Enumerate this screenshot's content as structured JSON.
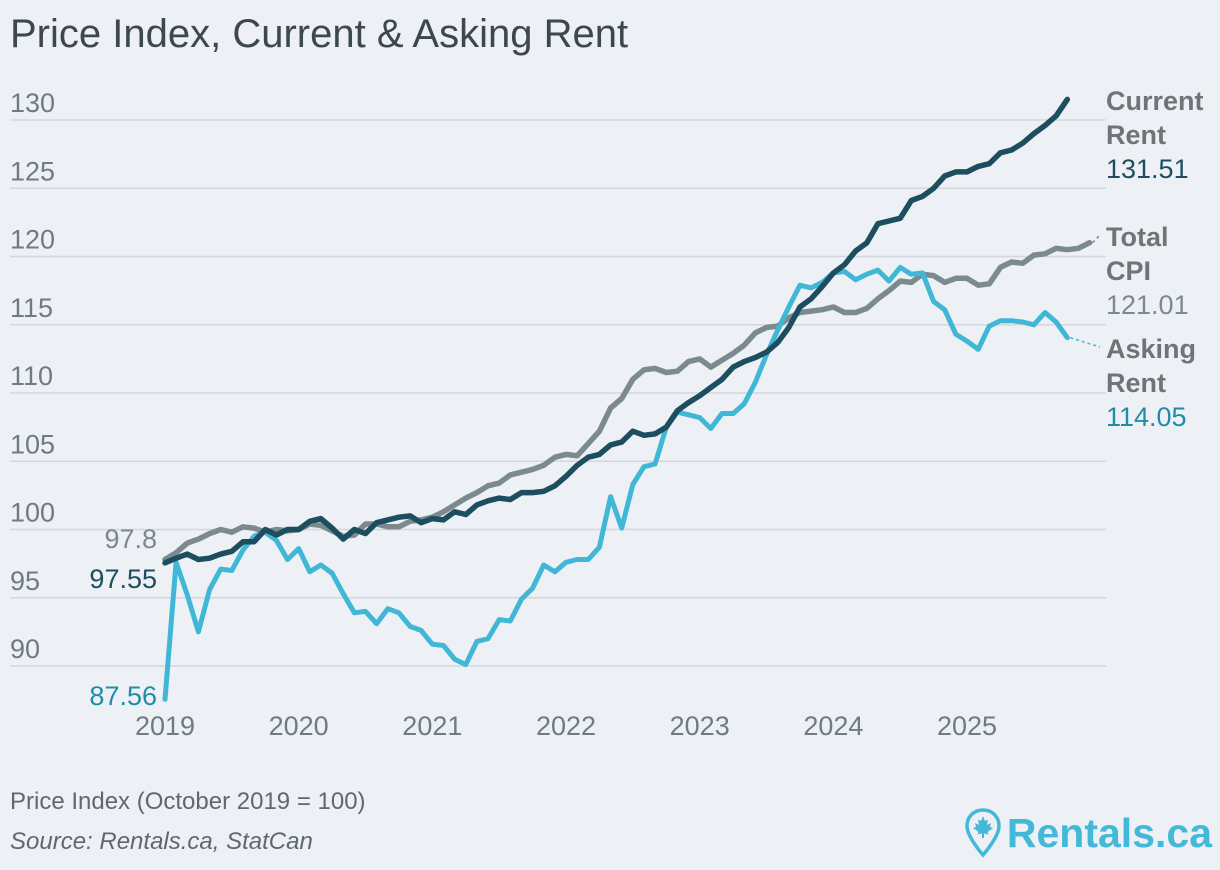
{
  "title": "Price Index, Current & Asking Rent",
  "footnote": "Price Index (October 2019 = 100)",
  "source": "Source: Rentals.ca, StatCan",
  "brand": "Rentals.ca",
  "colors": {
    "background": "#edf1f5",
    "current_rent": "#1d4e5f",
    "total_cpi": "#7b8a8e",
    "asking_rent": "#40b7d6",
    "asking_label": "#1e8ea8",
    "grid": "#d2d8de"
  },
  "chart_data": {
    "type": "line",
    "title": "Price Index, Current & Asking Rent",
    "ylim": [
      86,
      132
    ],
    "yticks": [
      90,
      95,
      100,
      105,
      110,
      115,
      120,
      125,
      130
    ],
    "xlim": [
      2019.0,
      2025.92
    ],
    "xticks": [
      2019,
      2020,
      2021,
      2022,
      2023,
      2024,
      2025
    ],
    "grid": true,
    "legend": "end-of-line labels, right",
    "start_labels": {
      "total_cpi": "97.8",
      "current_rent": "97.55",
      "asking_rent": "87.56"
    },
    "end_labels": {
      "current_rent": {
        "line1": "Current",
        "line2": "Rent",
        "value": "131.51"
      },
      "total_cpi": {
        "line1": "Total",
        "line2": "CPI",
        "value": "121.01"
      },
      "asking_rent": {
        "line1": "Asking",
        "line2": "Rent",
        "value": "114.05"
      }
    },
    "series": [
      {
        "key": "total_cpi",
        "start": "2019-01",
        "values": [
          97.8,
          98.3,
          99.0,
          99.3,
          99.7,
          100.0,
          99.8,
          100.2,
          100.1,
          99.8,
          100.0,
          99.9,
          100.0,
          100.4,
          100.3,
          99.9,
          99.5,
          99.6,
          100.4,
          100.4,
          100.2,
          100.2,
          100.6,
          100.7,
          100.9,
          101.3,
          101.8,
          102.3,
          102.7,
          103.2,
          103.4,
          104.0,
          104.2,
          104.4,
          104.7,
          105.3,
          105.5,
          105.4,
          106.3,
          107.2,
          108.9,
          109.6,
          111.0,
          111.7,
          111.8,
          111.5,
          111.6,
          112.3,
          112.5,
          111.9,
          112.4,
          112.9,
          113.5,
          114.4,
          114.8,
          114.9,
          115.5,
          115.9,
          116.0,
          116.1,
          116.3,
          115.9,
          115.9,
          116.2,
          116.9,
          117.5,
          118.2,
          118.1,
          118.7,
          118.6,
          118.1,
          118.4,
          118.4,
          117.9,
          118.0,
          119.2,
          119.6,
          119.5,
          120.1,
          120.2,
          120.6,
          120.5,
          120.6,
          121.01
        ]
      },
      {
        "key": "current_rent",
        "start": "2019-01",
        "values": [
          97.55,
          97.9,
          98.2,
          97.8,
          97.9,
          98.2,
          98.4,
          99.1,
          99.1,
          100.0,
          99.6,
          100.0,
          100.0,
          100.6,
          100.8,
          100.1,
          99.3,
          100.0,
          99.7,
          100.5,
          100.7,
          100.9,
          101.0,
          100.5,
          100.8,
          100.7,
          101.3,
          101.1,
          101.8,
          102.1,
          102.3,
          102.2,
          102.7,
          102.7,
          102.8,
          103.2,
          103.9,
          104.7,
          105.3,
          105.5,
          106.2,
          106.4,
          107.2,
          106.9,
          107.0,
          107.5,
          108.7,
          109.3,
          109.8,
          110.4,
          111.0,
          111.9,
          112.3,
          112.6,
          113.0,
          113.7,
          114.8,
          116.3,
          116.9,
          117.8,
          118.8,
          119.4,
          120.4,
          121.0,
          122.4,
          122.6,
          122.8,
          124.1,
          124.4,
          125.0,
          125.9,
          126.2,
          126.2,
          126.6,
          126.8,
          127.6,
          127.8,
          128.3,
          129.0,
          129.6,
          130.3,
          131.51
        ]
      },
      {
        "key": "asking_rent",
        "start": "2019-01",
        "values": [
          87.56,
          97.6,
          95.2,
          92.5,
          95.6,
          97.1,
          97.0,
          98.5,
          99.5,
          99.8,
          99.2,
          97.8,
          98.6,
          96.9,
          97.4,
          96.8,
          95.3,
          93.9,
          94.0,
          93.1,
          94.2,
          93.9,
          92.9,
          92.6,
          91.6,
          91.5,
          90.5,
          90.1,
          91.8,
          92.0,
          93.4,
          93.3,
          94.9,
          95.7,
          97.4,
          96.9,
          97.6,
          97.8,
          97.8,
          98.7,
          102.4,
          100.1,
          103.3,
          104.6,
          104.8,
          107.5,
          108.6,
          108.4,
          108.2,
          107.4,
          108.5,
          108.5,
          109.2,
          110.8,
          112.8,
          114.6,
          116.3,
          117.9,
          117.7,
          118.1,
          118.8,
          118.9,
          118.3,
          118.7,
          119.0,
          118.2,
          119.2,
          118.7,
          118.8,
          116.7,
          116.1,
          114.3,
          113.8,
          113.2,
          114.9,
          115.3,
          115.3,
          115.2,
          115.0,
          115.9,
          115.2,
          114.05
        ]
      }
    ]
  }
}
